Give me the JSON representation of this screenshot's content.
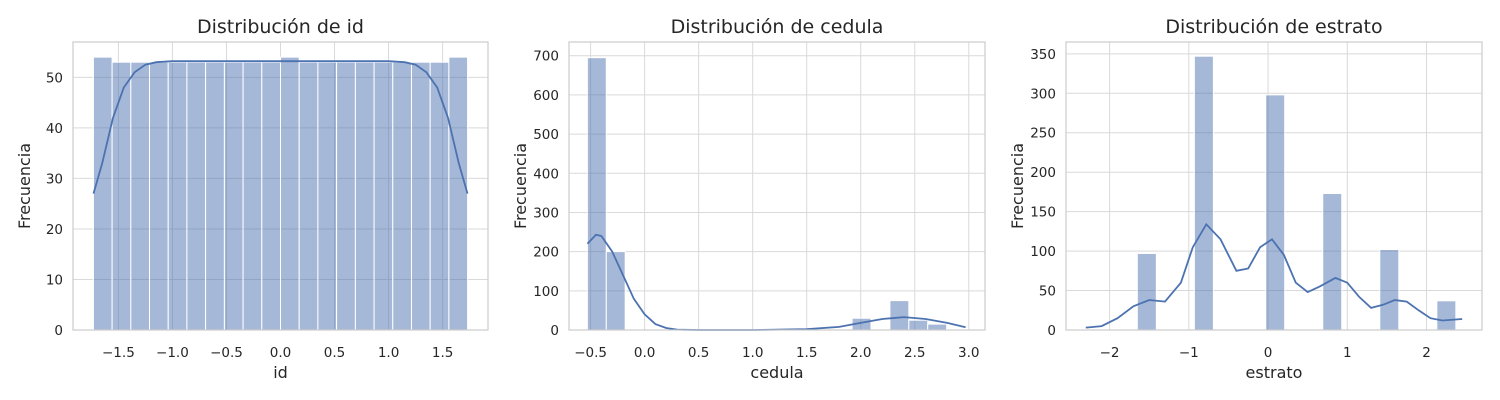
{
  "chart_data": [
    {
      "type": "bar",
      "title": "Distribución de id",
      "xlabel": "id",
      "ylabel": "Frecuencia",
      "xlim": [
        -1.92,
        1.92
      ],
      "ylim": [
        0,
        57
      ],
      "xticks": [
        -1.5,
        -1.0,
        -0.5,
        0.0,
        0.5,
        1.0,
        1.5
      ],
      "xtick_labels": [
        "−1.5",
        "−1.0",
        "−0.5",
        "0.0",
        "0.5",
        "1.0",
        "1.5"
      ],
      "yticks": [
        0,
        10,
        20,
        30,
        40,
        50
      ],
      "ytick_labels": [
        "0",
        "10",
        "20",
        "30",
        "40",
        "50"
      ],
      "grid": true,
      "bins": [
        {
          "x0": -1.731,
          "x1": -1.558,
          "count": 54
        },
        {
          "x0": -1.558,
          "x1": -1.385,
          "count": 53
        },
        {
          "x0": -1.385,
          "x1": -1.212,
          "count": 53
        },
        {
          "x0": -1.212,
          "x1": -1.039,
          "count": 53
        },
        {
          "x0": -1.039,
          "x1": -0.866,
          "count": 53
        },
        {
          "x0": -0.866,
          "x1": -0.693,
          "count": 53
        },
        {
          "x0": -0.693,
          "x1": -0.519,
          "count": 53
        },
        {
          "x0": -0.519,
          "x1": -0.346,
          "count": 53
        },
        {
          "x0": -0.346,
          "x1": -0.173,
          "count": 53
        },
        {
          "x0": -0.173,
          "x1": 0.0,
          "count": 53
        },
        {
          "x0": 0.0,
          "x1": 0.173,
          "count": 54
        },
        {
          "x0": 0.173,
          "x1": 0.346,
          "count": 53
        },
        {
          "x0": 0.346,
          "x1": 0.519,
          "count": 53
        },
        {
          "x0": 0.519,
          "x1": 0.693,
          "count": 53
        },
        {
          "x0": 0.693,
          "x1": 0.866,
          "count": 53
        },
        {
          "x0": 0.866,
          "x1": 1.039,
          "count": 53
        },
        {
          "x0": 1.039,
          "x1": 1.212,
          "count": 53
        },
        {
          "x0": 1.212,
          "x1": 1.385,
          "count": 53
        },
        {
          "x0": 1.385,
          "x1": 1.558,
          "count": 53
        },
        {
          "x0": 1.558,
          "x1": 1.731,
          "count": 54
        }
      ],
      "kde": {
        "x": [
          -1.73,
          -1.65,
          -1.55,
          -1.45,
          -1.35,
          -1.25,
          -1.15,
          -1.0,
          -0.5,
          0.0,
          0.5,
          1.0,
          1.15,
          1.25,
          1.35,
          1.45,
          1.55,
          1.65,
          1.73
        ],
        "y": [
          27,
          33,
          42,
          48,
          51,
          52.5,
          53,
          53.2,
          53.2,
          53.2,
          53.2,
          53.2,
          53,
          52.5,
          51,
          48,
          42,
          33,
          27
        ]
      }
    },
    {
      "type": "bar",
      "title": "Distribución de cedula",
      "xlabel": "cedula",
      "ylabel": "Frecuencia",
      "xlim": [
        -0.7,
        3.15
      ],
      "ylim": [
        0,
        735
      ],
      "xticks": [
        -0.5,
        0.0,
        0.5,
        1.0,
        1.5,
        2.0,
        2.5,
        3.0
      ],
      "xtick_labels": [
        "−0.5",
        "0.0",
        "0.5",
        "1.0",
        "1.5",
        "2.0",
        "2.5",
        "3.0"
      ],
      "yticks": [
        0,
        100,
        200,
        300,
        400,
        500,
        600,
        700
      ],
      "ytick_labels": [
        "0",
        "100",
        "200",
        "300",
        "400",
        "500",
        "600",
        "700"
      ],
      "grid": true,
      "bins": [
        {
          "x0": -0.53,
          "x1": -0.355,
          "count": 695
        },
        {
          "x0": -0.355,
          "x1": -0.18,
          "count": 200
        },
        {
          "x0": 1.92,
          "x1": 2.095,
          "count": 30
        },
        {
          "x0": 2.27,
          "x1": 2.445,
          "count": 75
        },
        {
          "x0": 2.445,
          "x1": 2.62,
          "count": 25
        },
        {
          "x0": 2.62,
          "x1": 2.795,
          "count": 15
        }
      ],
      "kde": {
        "x": [
          -0.53,
          -0.45,
          -0.4,
          -0.3,
          -0.2,
          -0.1,
          0.0,
          0.1,
          0.2,
          0.3,
          0.5,
          1.0,
          1.5,
          1.8,
          2.0,
          2.2,
          2.4,
          2.6,
          2.8,
          2.97
        ],
        "y": [
          220,
          243,
          240,
          200,
          140,
          80,
          40,
          15,
          5,
          1,
          0,
          0,
          2,
          8,
          18,
          28,
          33,
          28,
          18,
          7
        ]
      }
    },
    {
      "type": "bar",
      "title": "Distribución de estrato",
      "xlabel": "estrato",
      "ylabel": "Frecuencia",
      "xlim": [
        -2.55,
        2.7
      ],
      "ylim": [
        0,
        365
      ],
      "xticks": [
        -2,
        -1,
        0,
        1,
        2
      ],
      "xtick_labels": [
        "−2",
        "−1",
        "0",
        "1",
        "2"
      ],
      "yticks": [
        0,
        50,
        100,
        150,
        200,
        250,
        300,
        350
      ],
      "ytick_labels": [
        "0",
        "50",
        "100",
        "150",
        "200",
        "250",
        "300",
        "350"
      ],
      "grid": true,
      "bins": [
        {
          "x0": -1.65,
          "x1": -1.41,
          "count": 97
        },
        {
          "x0": -0.93,
          "x1": -0.69,
          "count": 347
        },
        {
          "x0": -0.03,
          "x1": 0.21,
          "count": 298
        },
        {
          "x0": 0.69,
          "x1": 0.93,
          "count": 173
        },
        {
          "x0": 1.41,
          "x1": 1.65,
          "count": 102
        },
        {
          "x0": 2.13,
          "x1": 2.37,
          "count": 37
        }
      ],
      "kde": {
        "x": [
          -2.3,
          -2.1,
          -1.9,
          -1.7,
          -1.5,
          -1.3,
          -1.1,
          -0.95,
          -0.78,
          -0.6,
          -0.4,
          -0.25,
          -0.1,
          0.05,
          0.2,
          0.35,
          0.5,
          0.65,
          0.85,
          1.0,
          1.15,
          1.3,
          1.45,
          1.6,
          1.75,
          1.9,
          2.05,
          2.2,
          2.45
        ],
        "y": [
          3,
          5,
          15,
          30,
          38,
          36,
          60,
          105,
          134,
          115,
          75,
          78,
          105,
          115,
          95,
          60,
          48,
          55,
          66,
          60,
          42,
          28,
          32,
          38,
          36,
          25,
          15,
          12,
          14
        ]
      }
    }
  ]
}
